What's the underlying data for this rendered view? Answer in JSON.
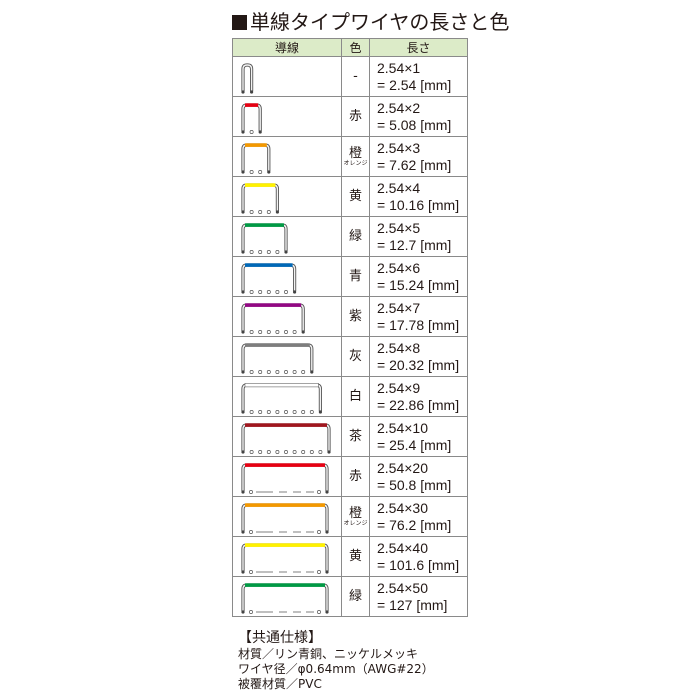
{
  "title": "単線タイプワイヤの長さと色",
  "table": {
    "headers": [
      "導線",
      "色",
      "長さ"
    ],
    "rows": [
      {
        "n": 1,
        "color_name": "-",
        "sub": "",
        "line1": "2.54×1",
        "line2": "= 2.54 [mm]",
        "hex": "#d0d0d0"
      },
      {
        "n": 2,
        "color_name": "赤",
        "sub": "",
        "line1": "2.54×2",
        "line2": "= 5.08 [mm]",
        "hex": "#e60012"
      },
      {
        "n": 3,
        "color_name": "橙",
        "sub": "オレンジ",
        "line1": "2.54×3",
        "line2": "= 7.62 [mm]",
        "hex": "#f39800"
      },
      {
        "n": 4,
        "color_name": "黄",
        "sub": "",
        "line1": "2.54×4",
        "line2": "= 10.16 [mm]",
        "hex": "#fff100"
      },
      {
        "n": 5,
        "color_name": "緑",
        "sub": "",
        "line1": "2.54×5",
        "line2": "= 12.7 [mm]",
        "hex": "#009944"
      },
      {
        "n": 6,
        "color_name": "青",
        "sub": "",
        "line1": "2.54×6",
        "line2": "= 15.24 [mm]",
        "hex": "#0068b7"
      },
      {
        "n": 7,
        "color_name": "紫",
        "sub": "",
        "line1": "2.54×7",
        "line2": "= 17.78 [mm]",
        "hex": "#920783"
      },
      {
        "n": 8,
        "color_name": "灰",
        "sub": "",
        "line1": "2.54×8",
        "line2": "= 20.32 [mm]",
        "hex": "#7d7d7d"
      },
      {
        "n": 9,
        "color_name": "白",
        "sub": "",
        "line1": "2.54×9",
        "line2": "= 22.86 [mm]",
        "hex": "#ffffff"
      },
      {
        "n": 10,
        "color_name": "茶",
        "sub": "",
        "line1": "2.54×10",
        "line2": "= 25.4 [mm]",
        "hex": "#a0161e"
      },
      {
        "n": 20,
        "color_name": "赤",
        "sub": "",
        "line1": "2.54×20",
        "line2": "= 50.8 [mm]",
        "hex": "#e60012"
      },
      {
        "n": 30,
        "color_name": "橙",
        "sub": "オレンジ",
        "line1": "2.54×30",
        "line2": "= 76.2 [mm]",
        "hex": "#f39800"
      },
      {
        "n": 40,
        "color_name": "黄",
        "sub": "",
        "line1": "2.54×40",
        "line2": "= 101.6 [mm]",
        "hex": "#fff100"
      },
      {
        "n": 50,
        "color_name": "緑",
        "sub": "",
        "line1": "2.54×50",
        "line2": "= 127 [mm]",
        "hex": "#009944"
      }
    ]
  },
  "spec": {
    "heading": "【共通仕様】",
    "lines": [
      "材質／リン青銅、ニッケルメッキ",
      "ワイヤ径／φ0.64mm（AWG#22）",
      "被覆材質／PVC"
    ]
  }
}
